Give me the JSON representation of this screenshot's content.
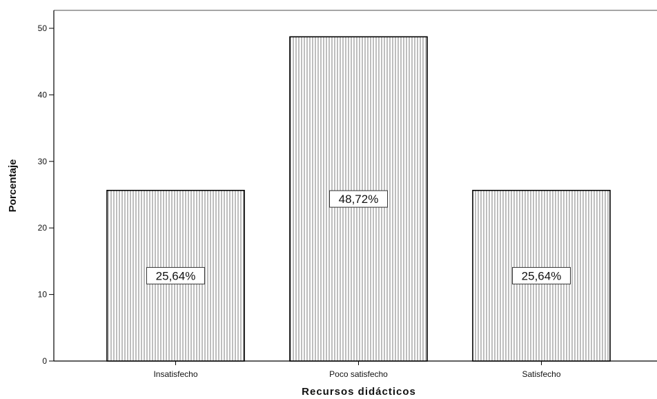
{
  "chart_data": {
    "type": "bar",
    "categories": [
      "Insatisfecho",
      "Poco satisfecho",
      "Satisfecho"
    ],
    "values": [
      25.64,
      48.72,
      25.64
    ],
    "data_labels": [
      "25,64%",
      "48,72%",
      "25,64%"
    ],
    "title": "",
    "xlabel": "Recursos didácticos",
    "ylabel": "Porcentaje",
    "ylim": [
      0,
      50
    ],
    "yticks": [
      0,
      10,
      20,
      30,
      40,
      50
    ],
    "grid": false,
    "legend": "none",
    "bar_pattern": "vertical-hatch",
    "bar_color": "#ffffff",
    "edge_color": "#000000"
  }
}
